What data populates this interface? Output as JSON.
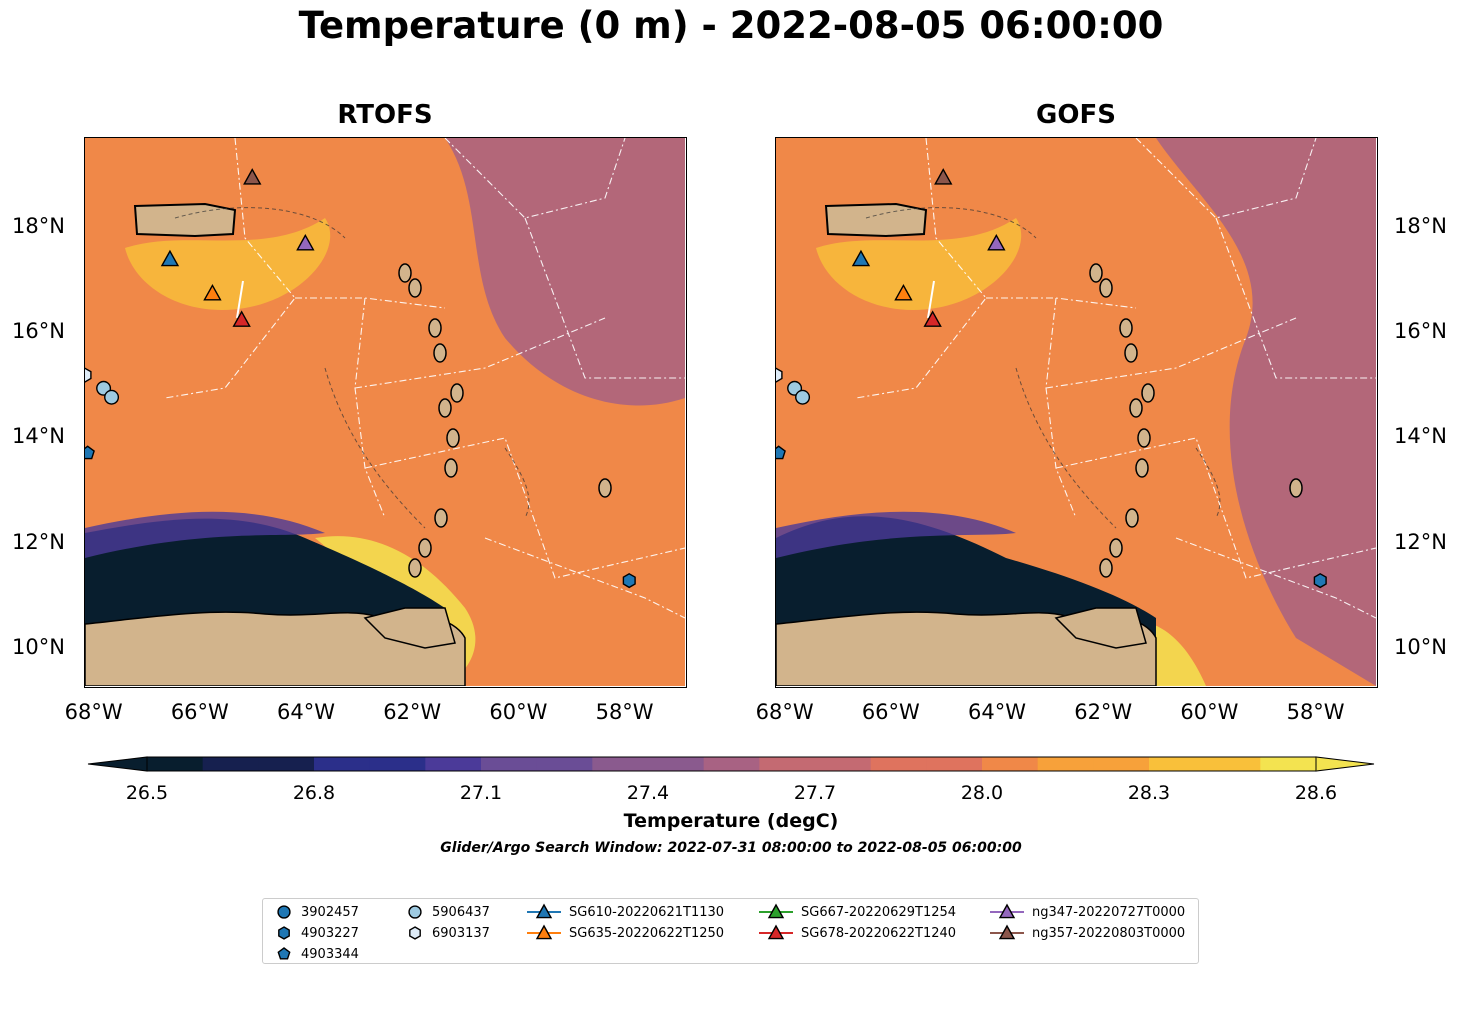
{
  "title": "Temperature (0 m) - 2022-08-05 06:00:00",
  "panels": {
    "left": {
      "title": "RTOFS"
    },
    "right": {
      "title": "GOFS"
    }
  },
  "axes": {
    "lon_labels": [
      "68°W",
      "66°W",
      "64°W",
      "62°W",
      "60°W",
      "58°W"
    ],
    "lat_labels": [
      "18°N",
      "16°N",
      "14°N",
      "12°N",
      "10°N"
    ],
    "lon_range": [
      -68.2,
      -56.9
    ],
    "lat_range": [
      9.3,
      19.7
    ]
  },
  "colorbar": {
    "ticks": [
      "26.5",
      "26.8",
      "27.1",
      "27.4",
      "27.7",
      "28.0",
      "28.3",
      "28.6"
    ],
    "label": "Temperature (degC)",
    "range": [
      26.5,
      28.6
    ],
    "colors": [
      "#081e2e",
      "#16204f",
      "#2b2f8a",
      "#4b3a99",
      "#6a4d96",
      "#8a5a8e",
      "#a86283",
      "#c46a72",
      "#df735e",
      "#f08848",
      "#f7a13a",
      "#f9c03a",
      "#f3e350"
    ]
  },
  "window_text": "Glider/Argo Search Window: 2022-07-31 08:00:00 to 2022-08-05 06:00:00",
  "legend": [
    {
      "label": "3902457",
      "marker": "circle",
      "color": "#1f77b4"
    },
    {
      "label": "4903227",
      "marker": "hexagon",
      "color": "#1f77b4"
    },
    {
      "label": "4903344",
      "marker": "pentagon",
      "color": "#1f77b4"
    },
    {
      "label": "5906437",
      "marker": "circle",
      "color": "#9ecae1"
    },
    {
      "label": "6903137",
      "marker": "hexagon",
      "color": "#deebf7"
    },
    {
      "label": "SG610-20220621T1130",
      "marker": "triangle",
      "color": "#1f77b4"
    },
    {
      "label": "SG635-20220622T1250",
      "marker": "triangle",
      "color": "#ff7f0e"
    },
    {
      "label": "SG667-20220629T1254",
      "marker": "triangle",
      "color": "#2ca02c"
    },
    {
      "label": "SG678-20220622T1240",
      "marker": "triangle",
      "color": "#d62728"
    },
    {
      "label": "ng347-20220727T0000",
      "marker": "triangle",
      "color": "#9467bd"
    },
    {
      "label": "ng357-20220803T0000",
      "marker": "triangle",
      "color": "#8c564b"
    }
  ],
  "platforms": [
    {
      "name": "SG610-20220621T1130",
      "marker": "triangle",
      "color": "#1f77b4",
      "lon": -66.6,
      "lat": 17.4
    },
    {
      "name": "SG635-20220622T1250",
      "marker": "triangle",
      "color": "#ff7f0e",
      "lon": -65.8,
      "lat": 16.75
    },
    {
      "name": "SG678-20220622T1240",
      "marker": "triangle",
      "color": "#d62728",
      "lon": -65.25,
      "lat": 16.25
    },
    {
      "name": "ng347-20220727T0000",
      "marker": "triangle",
      "color": "#9467bd",
      "lon": -64.05,
      "lat": 17.7
    },
    {
      "name": "ng357-20220803T0000",
      "marker": "triangle",
      "color": "#8c564b",
      "lon": -65.05,
      "lat": 18.95
    },
    {
      "name": "5906437",
      "marker": "circle",
      "color": "#9ecae1",
      "lon": -67.85,
      "lat": 14.95
    },
    {
      "name": "5906437",
      "marker": "circle",
      "color": "#9ecae1",
      "lon": -67.7,
      "lat": 14.78
    },
    {
      "name": "4903227",
      "marker": "hexagon",
      "color": "#1f77b4",
      "lon": -57.95,
      "lat": 11.3
    },
    {
      "name": "6903137",
      "marker": "hexagon",
      "color": "#deebf7",
      "lon": -68.2,
      "lat": 15.2
    },
    {
      "name": "4903344",
      "marker": "pentagon",
      "color": "#1f77b4",
      "lon": -68.15,
      "lat": 13.72
    }
  ]
}
